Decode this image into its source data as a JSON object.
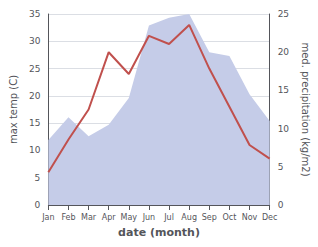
{
  "chart_data": {
    "type": "line",
    "xlabel": "date (month)",
    "ylabel": "max temp (C)",
    "y2label": "med. precipitation (kg/m2)",
    "categories": [
      "Jan",
      "Feb",
      "Mar",
      "Apr",
      "May",
      "Jun",
      "Jul",
      "Aug",
      "Sep",
      "Oct",
      "Nov",
      "Dec"
    ],
    "series": [
      {
        "type": "area",
        "axis": "y2",
        "color": "#c5cce8",
        "values": [
          8.5,
          11.5,
          9.0,
          10.5,
          14.0,
          23.5,
          24.5,
          25.0,
          20.0,
          19.5,
          14.5,
          11.0
        ]
      },
      {
        "type": "line",
        "color": "#c0504d",
        "values": [
          6.0,
          12.0,
          17.5,
          28.0,
          24.0,
          31.0,
          29.5,
          33.0,
          25.0,
          18.0,
          11.0,
          8.5
        ]
      }
    ],
    "ylim": [
      0,
      35
    ],
    "yticks": [
      0,
      5,
      10,
      15,
      20,
      25,
      30,
      35
    ],
    "y2lim": [
      0,
      25
    ],
    "y2ticks": [
      0,
      5,
      10,
      15,
      20,
      25
    ],
    "grid": true
  }
}
